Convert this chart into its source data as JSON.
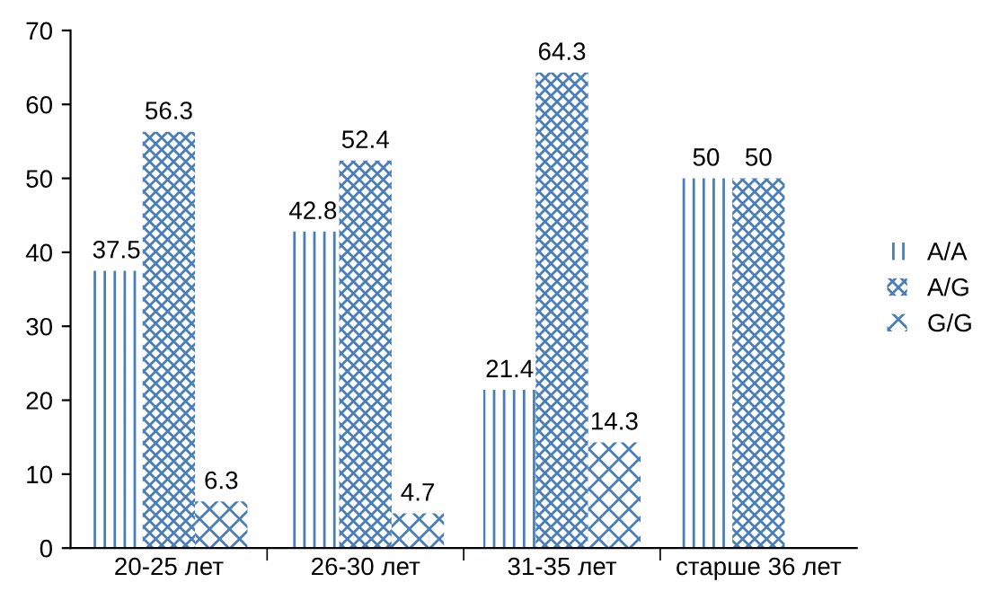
{
  "chart_data": {
    "type": "bar",
    "categories": [
      "20-25 лет",
      "26-30 лет",
      "31-35 лет",
      "старше 36 лет"
    ],
    "series": [
      {
        "name": "A/A",
        "color": "#4a7ebb",
        "values": [
          37.5,
          42.8,
          21.4,
          50
        ]
      },
      {
        "name": "A/G",
        "color": "#4a7ebb",
        "values": [
          56.3,
          52.4,
          64.3,
          50
        ]
      },
      {
        "name": "G/G",
        "color": "#4a7ebb",
        "values": [
          6.3,
          4.7,
          14.3,
          null
        ]
      }
    ],
    "ylim": [
      0,
      70
    ],
    "yticks": [
      0,
      10,
      20,
      30,
      40,
      50,
      60,
      70
    ],
    "grid": false,
    "legend": "right",
    "data_labels": true
  }
}
